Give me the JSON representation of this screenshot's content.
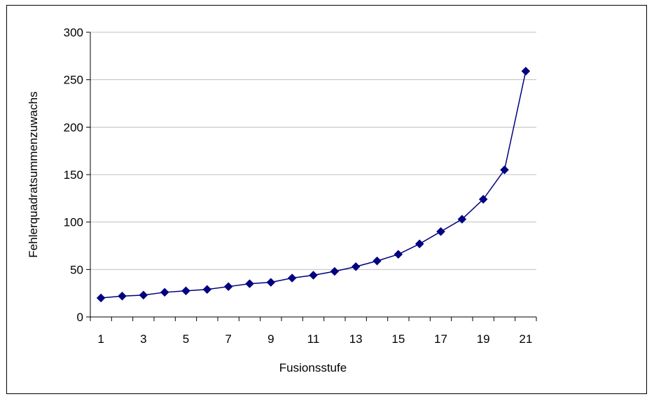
{
  "chart_data": {
    "type": "line",
    "title": "",
    "xlabel": "Fusionsstufe",
    "ylabel": "Fehlerquadratsummenzuwachs",
    "x": [
      1,
      2,
      3,
      4,
      5,
      6,
      7,
      8,
      9,
      10,
      11,
      12,
      13,
      14,
      15,
      16,
      17,
      18,
      19,
      20,
      21
    ],
    "x_tick_labels": [
      "1",
      "3",
      "5",
      "7",
      "9",
      "11",
      "13",
      "15",
      "17",
      "19",
      "21"
    ],
    "y_tick_labels": [
      "0",
      "50",
      "100",
      "150",
      "200",
      "250",
      "300"
    ],
    "ylim": [
      0,
      300
    ],
    "grid": "horizontal",
    "series": [
      {
        "values": [
          20,
          22,
          23,
          26,
          27.5,
          29,
          32,
          35,
          36.5,
          41,
          44,
          48,
          53,
          59,
          66,
          77,
          90,
          103,
          124,
          155,
          259
        ],
        "color": "#000080",
        "marker": "diamond"
      }
    ]
  }
}
